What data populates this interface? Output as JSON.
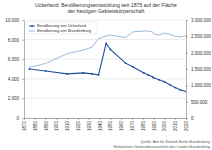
{
  "chart_data": {
    "type": "line",
    "title": "Uckerland: Bevölkerungsentwicklung seit 1875 auf der Fläche der heutigen Gebietskörperschaft",
    "source": [
      "Quelle: Amt für Statistik Berlin-Brandenburg",
      "Historisches Gemeindeverzeichnis des Landes Brandenburg"
    ],
    "x": [
      1875,
      1890,
      1910,
      1925,
      1933,
      1939,
      1946,
      1950,
      1964,
      1971,
      1981,
      1985,
      1989,
      1990,
      1995,
      2000,
      2005,
      2010,
      2015,
      2020
    ],
    "series": [
      {
        "name": "Bevölkerung von Uckerland",
        "color": "#1f4e9c",
        "marker": "circle",
        "line_style": "solid",
        "values": [
          5000,
          4800,
          4500,
          4600,
          4500,
          4400,
          7600,
          7000,
          5600,
          5200,
          4600,
          4400,
          4200,
          4100,
          3900,
          3700,
          3400,
          3100,
          2850,
          2700
        ]
      },
      {
        "name": "Bevölkerung von Brandenburg",
        "color": "#8fb3d9",
        "marker": "none",
        "line_style": "solid",
        "axis": "y2",
        "values": [
          1550000,
          1670000,
          1970000,
          2080000,
          2170000,
          2430000,
          2510000,
          2540000,
          2460000,
          2640000,
          2660000,
          2660000,
          2640000,
          2580000,
          2540000,
          2600000,
          2560000,
          2500000,
          2480000,
          2530000
        ]
      }
    ],
    "xlim": [
      1870,
      2020
    ],
    "xticks": [
      1870,
      1880,
      1890,
      1900,
      1910,
      1920,
      1930,
      1940,
      1950,
      1960,
      1970,
      1980,
      1990,
      2000,
      2010,
      2020
    ],
    "ylim": [
      0,
      10000
    ],
    "yticks": [
      0,
      {
        "value": 2000,
        "label": "2.000"
      },
      {
        "value": 4000,
        "label": "4.000"
      },
      {
        "value": 6000,
        "label": "6.000"
      },
      {
        "value": 8000,
        "label": "8.000"
      },
      {
        "value": 10000,
        "label": "10.000"
      }
    ],
    "y2lim": [
      0,
      3000000
    ],
    "y2ticks": [
      0,
      {
        "value": 500000,
        "label": "500.000"
      },
      {
        "value": 1000000,
        "label": "1.000.000"
      },
      {
        "value": 1500000,
        "label": "1.500.000"
      },
      {
        "value": 2000000,
        "label": "2.000.000"
      },
      {
        "value": 2500000,
        "label": "2.500.000"
      },
      {
        "value": 3000000,
        "label": "3.000.000"
      }
    ],
    "grid": true,
    "legend": "top-left"
  }
}
